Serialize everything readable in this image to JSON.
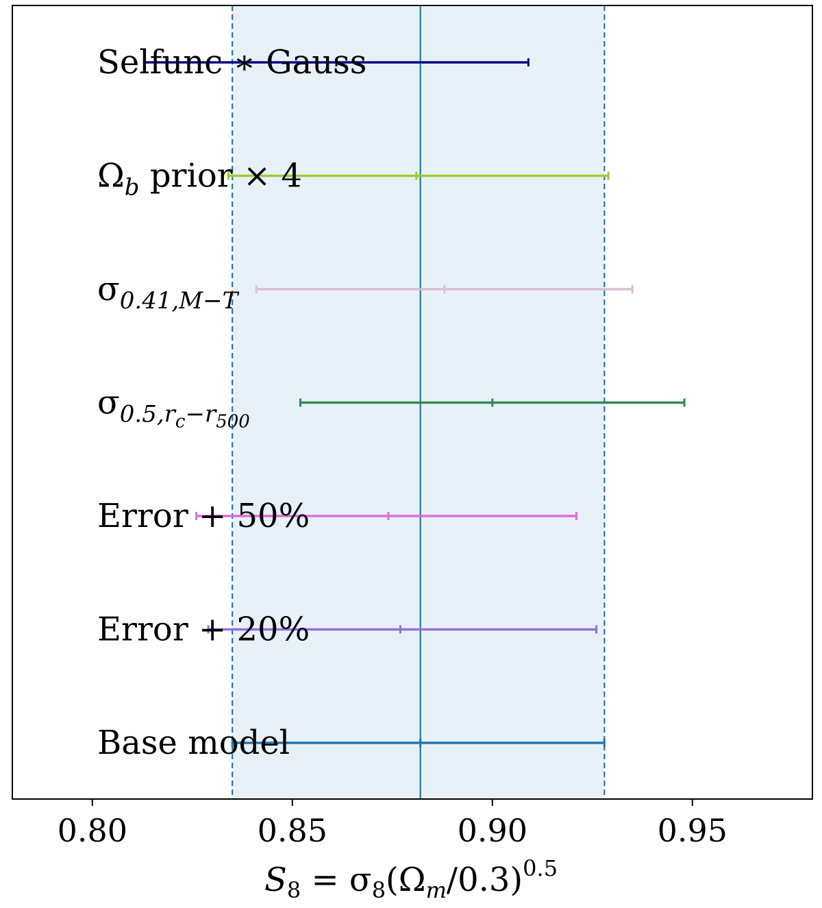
{
  "chart_data": {
    "type": "errorbar",
    "xlabel": {
      "base": "S",
      "base_sub": "8",
      "eq": " = σ",
      "sigma_sub": "8",
      "paren": "(Ω",
      "omega_sub": "m",
      "rest": "/0.3)",
      "sup": "0.5"
    },
    "xlim": [
      0.78,
      0.98
    ],
    "xticks": [
      {
        "value": 0.8,
        "label": "0.80"
      },
      {
        "value": 0.85,
        "label": "0.85"
      },
      {
        "value": 0.9,
        "label": "0.90"
      },
      {
        "value": 0.95,
        "label": "0.95"
      }
    ],
    "reference": {
      "center": 0.882,
      "low": 0.835,
      "high": 0.928,
      "line_color": "#1f77b4",
      "band_color": "#e8f0f8"
    },
    "rows": [
      {
        "label": "Selfunc ∗ Gauss",
        "label_parts": [],
        "center": 0.861,
        "low": 0.813,
        "high": 0.909,
        "color": "#0b0b80"
      },
      {
        "label": "",
        "label_parts": [
          {
            "t": "Ω",
            "style": "normal"
          },
          {
            "t": "b",
            "style": "sub"
          },
          {
            "t": " prior × 4",
            "style": "normal"
          }
        ],
        "center": 0.881,
        "low": 0.834,
        "high": 0.929,
        "color": "#9acd32"
      },
      {
        "label": "",
        "label_parts": [
          {
            "t": "σ",
            "style": "normal"
          },
          {
            "t": "0.41,M−T",
            "style": "sub"
          }
        ],
        "center": 0.888,
        "low": 0.841,
        "high": 0.935,
        "color": "#d8bfd8"
      },
      {
        "label": "",
        "label_parts": [
          {
            "t": "σ",
            "style": "normal"
          },
          {
            "t": "0.5,r",
            "style": "sub"
          },
          {
            "t": "c",
            "style": "subsub"
          },
          {
            "t": "−r",
            "style": "sub"
          },
          {
            "t": "500",
            "style": "subsub"
          }
        ],
        "center": 0.9,
        "low": 0.852,
        "high": 0.948,
        "color": "#2e8b57"
      },
      {
        "label": "Error + 50%",
        "label_parts": [],
        "center": 0.874,
        "low": 0.826,
        "high": 0.921,
        "color": "#da70d6"
      },
      {
        "label": "Error + 20%",
        "label_parts": [],
        "center": 0.877,
        "low": 0.829,
        "high": 0.926,
        "color": "#9370db"
      },
      {
        "label": "Base model",
        "label_parts": [],
        "center": 0.882,
        "low": 0.835,
        "high": 0.928,
        "color": "#1f77b4"
      }
    ]
  }
}
